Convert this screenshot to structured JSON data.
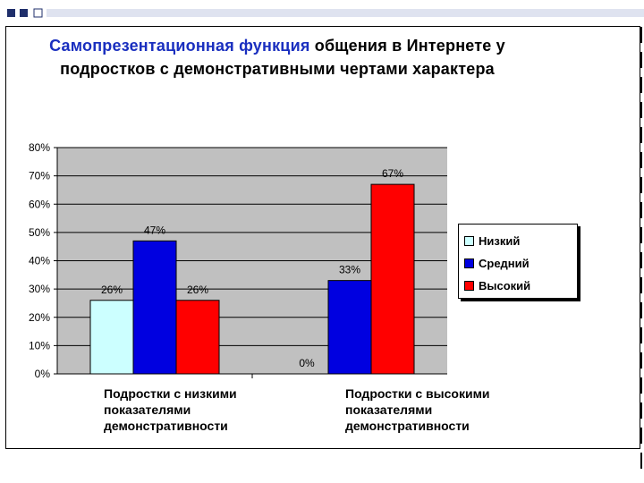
{
  "title_line1": "Самопрезентационная функция",
  "title_rest": " общения в Интернете у подростков с демонстративными чертами характера",
  "chart_data": {
    "type": "bar",
    "categories": [
      "Подростки с низкими показателями демонстративности",
      "Подростки с высокими показателями демонстративности"
    ],
    "series": [
      {
        "name": "Низкий",
        "color": "#ccffff",
        "values": [
          26,
          0
        ],
        "labels": [
          "26%",
          "0%"
        ]
      },
      {
        "name": "Средний",
        "color": "#0000e0",
        "values": [
          47,
          33
        ],
        "labels": [
          "47%",
          "33%"
        ]
      },
      {
        "name": "Высокий",
        "color": "#ff0000",
        "values": [
          26,
          67
        ],
        "labels": [
          "26%",
          "67%"
        ]
      }
    ],
    "ylim": [
      0,
      80
    ],
    "yticks": [
      "0%",
      "10%",
      "20%",
      "30%",
      "40%",
      "50%",
      "60%",
      "70%",
      "80%"
    ],
    "grid": true,
    "plot_background": "#c0c0c0",
    "legend_position": "right"
  }
}
